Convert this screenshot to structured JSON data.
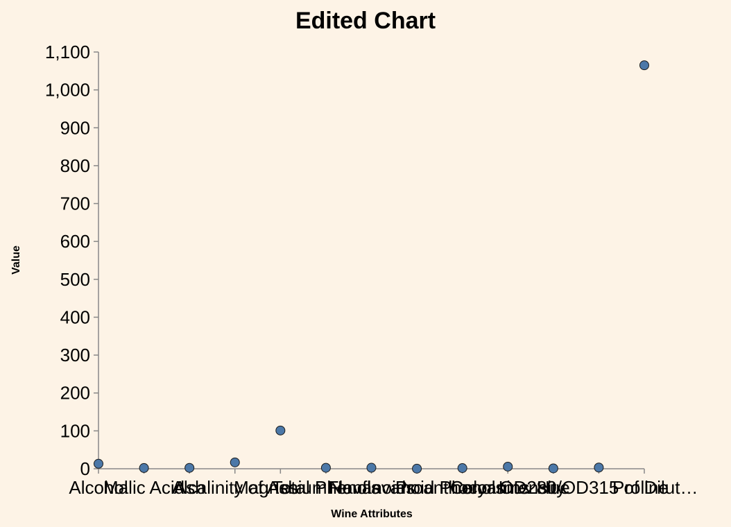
{
  "chart_data": {
    "type": "scatter",
    "title": "Edited Chart",
    "xlabel": "Wine Attributes",
    "ylabel": "Value",
    "categories": [
      "Alcohol",
      "Malic Acid",
      "Ash",
      "Alcalinity of Ash",
      "Magnesium",
      "Total Phenols",
      "Flavanoids",
      "Nonflavanoid Phenols",
      "Proanthocyanins",
      "Color Intensity",
      "Hue",
      "OD280/OD315 of Diluted Wines",
      "Proline"
    ],
    "xtick_labels": [
      "Alcohol",
      "Malic Acid",
      "Ash",
      "Alcalinity of Ash",
      "Magnesium",
      "Total Phenols",
      "Flavanoids",
      "Nonflavanoid Phenols",
      "Proanthocyanins",
      "Color Intensity",
      "Hue",
      "OD280/OD315 of Dilut…",
      "Proline"
    ],
    "values": [
      13.2,
      2.0,
      2.4,
      16.8,
      101,
      2.6,
      2.7,
      0.3,
      1.8,
      5.6,
      1.0,
      3.2,
      1065
    ],
    "ylim": [
      0,
      1100
    ],
    "yticks": [
      0,
      100,
      200,
      300,
      400,
      500,
      600,
      700,
      800,
      900,
      1000,
      1100
    ],
    "ytick_labels": [
      "0",
      "100",
      "200",
      "300",
      "400",
      "500",
      "600",
      "700",
      "800",
      "900",
      "1,000",
      "1,100"
    ],
    "grid": false,
    "point_color": "#4c78a8",
    "background": "#fdf3e6"
  }
}
